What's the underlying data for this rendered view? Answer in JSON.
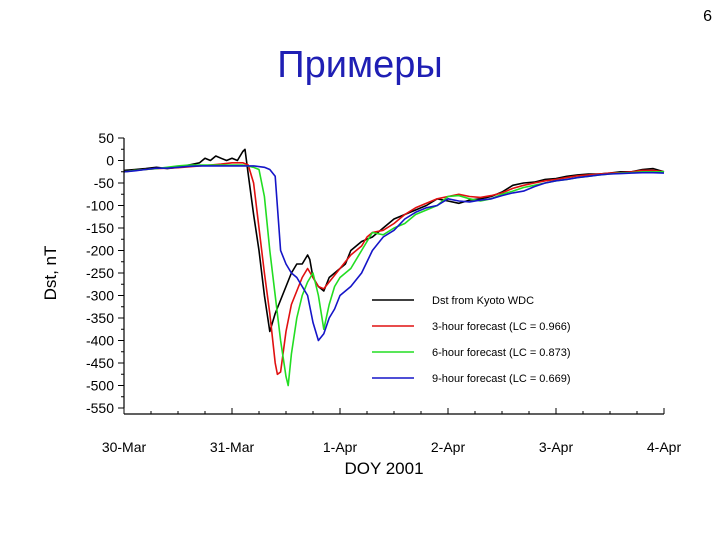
{
  "slide": {
    "number": "6",
    "title": "Примеры"
  },
  "chart_data": {
    "type": "line",
    "xlabel": "DOY 2001",
    "ylabel": "Dst, nT",
    "xlim": [
      0,
      5
    ],
    "ylim": [
      -550,
      50
    ],
    "x_ticks": [
      {
        "value": 0,
        "label": "30-Mar"
      },
      {
        "value": 1,
        "label": "31-Mar"
      },
      {
        "value": 2,
        "label": "1-Apr"
      },
      {
        "value": 3,
        "label": "2-Apr"
      },
      {
        "value": 4,
        "label": "3-Apr"
      },
      {
        "value": 5,
        "label": "4-Apr"
      }
    ],
    "y_ticks": [
      50,
      0,
      -50,
      -100,
      -150,
      -200,
      -250,
      -300,
      -350,
      -400,
      -450,
      -500,
      -550
    ],
    "grid": false,
    "legend_position": "inside-lower-right",
    "series": [
      {
        "name": "Dst from Kyoto WDC",
        "color": "#000000",
        "points": [
          [
            0,
            -22
          ],
          [
            0.1,
            -20
          ],
          [
            0.2,
            -18
          ],
          [
            0.3,
            -15
          ],
          [
            0.4,
            -18
          ],
          [
            0.5,
            -15
          ],
          [
            0.6,
            -10
          ],
          [
            0.7,
            -5
          ],
          [
            0.75,
            5
          ],
          [
            0.8,
            0
          ],
          [
            0.85,
            10
          ],
          [
            0.9,
            5
          ],
          [
            0.95,
            0
          ],
          [
            1.0,
            5
          ],
          [
            1.05,
            0
          ],
          [
            1.1,
            20
          ],
          [
            1.12,
            25
          ],
          [
            1.15,
            -30
          ],
          [
            1.2,
            -120
          ],
          [
            1.25,
            -200
          ],
          [
            1.3,
            -300
          ],
          [
            1.35,
            -380
          ],
          [
            1.4,
            -340
          ],
          [
            1.45,
            -310
          ],
          [
            1.5,
            -280
          ],
          [
            1.55,
            -250
          ],
          [
            1.6,
            -230
          ],
          [
            1.65,
            -230
          ],
          [
            1.7,
            -210
          ],
          [
            1.72,
            -220
          ],
          [
            1.75,
            -260
          ],
          [
            1.8,
            -280
          ],
          [
            1.85,
            -290
          ],
          [
            1.9,
            -260
          ],
          [
            2.0,
            -240
          ],
          [
            2.05,
            -230
          ],
          [
            2.1,
            -200
          ],
          [
            2.2,
            -180
          ],
          [
            2.3,
            -170
          ],
          [
            2.4,
            -150
          ],
          [
            2.5,
            -130
          ],
          [
            2.6,
            -120
          ],
          [
            2.7,
            -110
          ],
          [
            2.8,
            -100
          ],
          [
            2.9,
            -85
          ],
          [
            3.0,
            -90
          ],
          [
            3.1,
            -95
          ],
          [
            3.2,
            -88
          ],
          [
            3.3,
            -85
          ],
          [
            3.4,
            -80
          ],
          [
            3.5,
            -70
          ],
          [
            3.6,
            -55
          ],
          [
            3.7,
            -50
          ],
          [
            3.8,
            -48
          ],
          [
            3.9,
            -42
          ],
          [
            4.0,
            -40
          ],
          [
            4.1,
            -35
          ],
          [
            4.2,
            -32
          ],
          [
            4.3,
            -30
          ],
          [
            4.4,
            -30
          ],
          [
            4.5,
            -28
          ],
          [
            4.6,
            -25
          ],
          [
            4.7,
            -25
          ],
          [
            4.8,
            -20
          ],
          [
            4.9,
            -18
          ],
          [
            5.0,
            -25
          ]
        ]
      },
      {
        "name": "3-hour forecast (LC = 0.966)",
        "color": "#e01010",
        "points": [
          [
            0,
            -25
          ],
          [
            0.1,
            -22
          ],
          [
            0.2,
            -20
          ],
          [
            0.3,
            -18
          ],
          [
            0.4,
            -17
          ],
          [
            0.5,
            -16
          ],
          [
            0.6,
            -14
          ],
          [
            0.7,
            -12
          ],
          [
            0.8,
            -10
          ],
          [
            0.9,
            -8
          ],
          [
            1.0,
            -5
          ],
          [
            1.1,
            -5
          ],
          [
            1.15,
            -10
          ],
          [
            1.2,
            -50
          ],
          [
            1.25,
            -150
          ],
          [
            1.3,
            -250
          ],
          [
            1.35,
            -340
          ],
          [
            1.4,
            -450
          ],
          [
            1.42,
            -475
          ],
          [
            1.45,
            -470
          ],
          [
            1.5,
            -380
          ],
          [
            1.55,
            -320
          ],
          [
            1.6,
            -290
          ],
          [
            1.65,
            -260
          ],
          [
            1.7,
            -240
          ],
          [
            1.75,
            -260
          ],
          [
            1.8,
            -280
          ],
          [
            1.85,
            -285
          ],
          [
            1.9,
            -270
          ],
          [
            2.0,
            -240
          ],
          [
            2.1,
            -210
          ],
          [
            2.2,
            -190
          ],
          [
            2.25,
            -170
          ],
          [
            2.3,
            -160
          ],
          [
            2.4,
            -155
          ],
          [
            2.5,
            -140
          ],
          [
            2.6,
            -120
          ],
          [
            2.7,
            -105
          ],
          [
            2.8,
            -95
          ],
          [
            2.9,
            -85
          ],
          [
            3.0,
            -80
          ],
          [
            3.1,
            -75
          ],
          [
            3.2,
            -80
          ],
          [
            3.3,
            -82
          ],
          [
            3.4,
            -78
          ],
          [
            3.5,
            -72
          ],
          [
            3.6,
            -62
          ],
          [
            3.7,
            -55
          ],
          [
            3.8,
            -50
          ],
          [
            3.9,
            -45
          ],
          [
            4.0,
            -42
          ],
          [
            4.1,
            -38
          ],
          [
            4.2,
            -34
          ],
          [
            4.3,
            -32
          ],
          [
            4.4,
            -30
          ],
          [
            4.5,
            -28
          ],
          [
            4.6,
            -27
          ],
          [
            4.7,
            -25
          ],
          [
            4.8,
            -22
          ],
          [
            4.9,
            -22
          ],
          [
            5.0,
            -25
          ]
        ]
      },
      {
        "name": "6-hour forecast (LC = 0.873)",
        "color": "#22dd22",
        "points": [
          [
            0,
            -25
          ],
          [
            0.1,
            -22
          ],
          [
            0.2,
            -20
          ],
          [
            0.3,
            -18
          ],
          [
            0.4,
            -15
          ],
          [
            0.5,
            -12
          ],
          [
            0.6,
            -10
          ],
          [
            0.7,
            -10
          ],
          [
            0.8,
            -10
          ],
          [
            0.9,
            -10
          ],
          [
            1.0,
            -10
          ],
          [
            1.1,
            -10
          ],
          [
            1.2,
            -15
          ],
          [
            1.25,
            -20
          ],
          [
            1.3,
            -80
          ],
          [
            1.35,
            -200
          ],
          [
            1.4,
            -300
          ],
          [
            1.45,
            -400
          ],
          [
            1.5,
            -480
          ],
          [
            1.52,
            -500
          ],
          [
            1.55,
            -430
          ],
          [
            1.6,
            -350
          ],
          [
            1.65,
            -300
          ],
          [
            1.7,
            -270
          ],
          [
            1.75,
            -250
          ],
          [
            1.8,
            -300
          ],
          [
            1.85,
            -375
          ],
          [
            1.9,
            -320
          ],
          [
            1.95,
            -280
          ],
          [
            2.0,
            -260
          ],
          [
            2.1,
            -240
          ],
          [
            2.2,
            -200
          ],
          [
            2.3,
            -160
          ],
          [
            2.4,
            -165
          ],
          [
            2.5,
            -150
          ],
          [
            2.6,
            -140
          ],
          [
            2.7,
            -120
          ],
          [
            2.8,
            -110
          ],
          [
            2.9,
            -100
          ],
          [
            3.0,
            -80
          ],
          [
            3.1,
            -78
          ],
          [
            3.2,
            -85
          ],
          [
            3.3,
            -90
          ],
          [
            3.4,
            -85
          ],
          [
            3.5,
            -75
          ],
          [
            3.6,
            -68
          ],
          [
            3.7,
            -60
          ],
          [
            3.8,
            -55
          ],
          [
            3.9,
            -50
          ],
          [
            4.0,
            -45
          ],
          [
            4.1,
            -42
          ],
          [
            4.2,
            -38
          ],
          [
            4.3,
            -35
          ],
          [
            4.4,
            -32
          ],
          [
            4.5,
            -30
          ],
          [
            4.6,
            -28
          ],
          [
            4.7,
            -27
          ],
          [
            4.8,
            -25
          ],
          [
            4.9,
            -25
          ],
          [
            5.0,
            -25
          ]
        ]
      },
      {
        "name": "9-hour forecast (LC = 0.669)",
        "color": "#1515c8",
        "points": [
          [
            0,
            -25
          ],
          [
            0.1,
            -23
          ],
          [
            0.2,
            -20
          ],
          [
            0.3,
            -17
          ],
          [
            0.4,
            -17
          ],
          [
            0.5,
            -15
          ],
          [
            0.6,
            -13
          ],
          [
            0.7,
            -12
          ],
          [
            0.8,
            -12
          ],
          [
            0.9,
            -12
          ],
          [
            1.0,
            -12
          ],
          [
            1.1,
            -12
          ],
          [
            1.2,
            -12
          ],
          [
            1.3,
            -15
          ],
          [
            1.35,
            -20
          ],
          [
            1.4,
            -35
          ],
          [
            1.45,
            -200
          ],
          [
            1.5,
            -230
          ],
          [
            1.55,
            -250
          ],
          [
            1.6,
            -260
          ],
          [
            1.65,
            -280
          ],
          [
            1.7,
            -300
          ],
          [
            1.75,
            -360
          ],
          [
            1.8,
            -400
          ],
          [
            1.85,
            -385
          ],
          [
            1.9,
            -350
          ],
          [
            1.95,
            -330
          ],
          [
            2.0,
            -300
          ],
          [
            2.1,
            -280
          ],
          [
            2.2,
            -250
          ],
          [
            2.3,
            -200
          ],
          [
            2.4,
            -170
          ],
          [
            2.5,
            -155
          ],
          [
            2.6,
            -130
          ],
          [
            2.7,
            -115
          ],
          [
            2.8,
            -105
          ],
          [
            2.9,
            -100
          ],
          [
            3.0,
            -85
          ],
          [
            3.1,
            -90
          ],
          [
            3.2,
            -92
          ],
          [
            3.3,
            -88
          ],
          [
            3.4,
            -85
          ],
          [
            3.5,
            -78
          ],
          [
            3.6,
            -72
          ],
          [
            3.7,
            -68
          ],
          [
            3.8,
            -58
          ],
          [
            3.9,
            -50
          ],
          [
            4.0,
            -45
          ],
          [
            4.1,
            -42
          ],
          [
            4.2,
            -38
          ],
          [
            4.3,
            -35
          ],
          [
            4.4,
            -32
          ],
          [
            4.5,
            -30
          ],
          [
            4.6,
            -29
          ],
          [
            4.7,
            -28
          ],
          [
            4.8,
            -27
          ],
          [
            4.9,
            -27
          ],
          [
            5.0,
            -28
          ]
        ]
      }
    ]
  }
}
